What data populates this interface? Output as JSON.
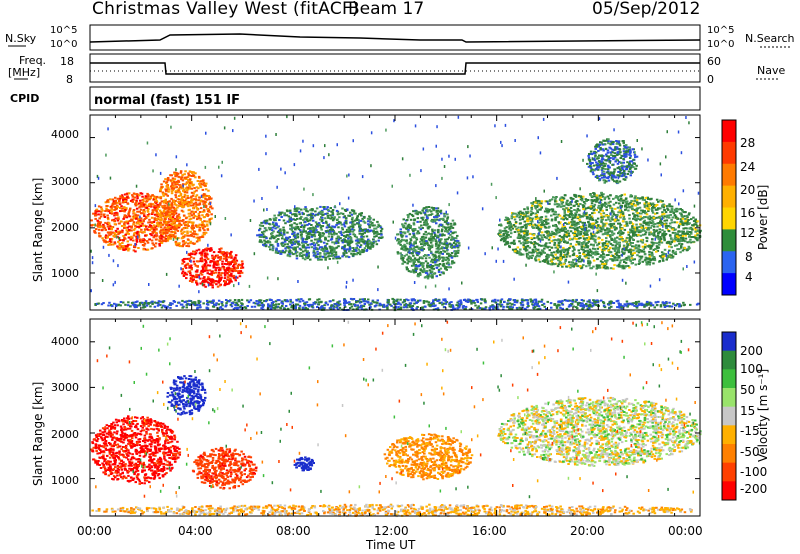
{
  "header": {
    "title": "Christmas Valley West (fitACF)",
    "beam": "Beam 17",
    "date": "05/Sep/2012"
  },
  "summary": {
    "nsky_label": "N.Sky",
    "nsky_ticks": [
      "10^5",
      "10^0"
    ],
    "nsearch_label": "N.Search",
    "nsearch_ticks": [
      "10^5",
      "10^0"
    ],
    "freq_label_1": "Freq.",
    "freq_label_2": "[MHz]",
    "freq_ticks": [
      "18",
      "8"
    ],
    "nave_label": "Nave",
    "nave_ticks": [
      "60",
      "0"
    ],
    "cpid_label": "CPID",
    "cpid_text": "normal (fast) 151 IF"
  },
  "axes": {
    "ylabel": "Slant Range [km]",
    "xlabel": "Time UT",
    "yticks": [
      "4000",
      "3000",
      "2000",
      "1000"
    ],
    "xticks": [
      "00:00",
      "04:00",
      "08:00",
      "12:00",
      "16:00",
      "20:00",
      "00:00"
    ]
  },
  "chart_data": [
    {
      "type": "heatmap",
      "title": "",
      "xlabel": "Time UT",
      "ylabel": "Slant Range [km]",
      "xlim": [
        "00:00",
        "24:00"
      ],
      "ylim": [
        180,
        4500
      ],
      "colorbar": {
        "label": "Power [dB]",
        "ticks": [
          "28",
          "24",
          "20",
          "16",
          "12",
          "8",
          "4"
        ],
        "range": [
          0,
          30
        ],
        "colors": [
          "#0000ff",
          "#2060ff",
          "#338033",
          "#40a040",
          "#ffcc00",
          "#ff8000",
          "#ff0000"
        ]
      },
      "echo_regions": [
        {
          "t": [
            0.0,
            3.5
          ],
          "range": [
            1500,
            2800
          ],
          "value": 24
        },
        {
          "t": [
            2.5,
            4.8
          ],
          "range": [
            1600,
            3300
          ],
          "value": 22
        },
        {
          "t": [
            3.5,
            6.0
          ],
          "range": [
            700,
            1600
          ],
          "value": 27
        },
        {
          "t": [
            6.5,
            11.5
          ],
          "range": [
            1300,
            2500
          ],
          "value": 10
        },
        {
          "t": [
            12.0,
            14.5
          ],
          "range": [
            900,
            2500
          ],
          "value": 11
        },
        {
          "t": [
            16.0,
            24.0
          ],
          "range": [
            1100,
            2800
          ],
          "value": 12
        },
        {
          "t": [
            19.5,
            21.5
          ],
          "range": [
            3000,
            4000
          ],
          "value": 9
        },
        {
          "t": [
            0.0,
            24.0
          ],
          "range": [
            200,
            450
          ],
          "value": 8
        }
      ]
    },
    {
      "type": "heatmap",
      "title": "",
      "xlabel": "Time UT",
      "ylabel": "Slant Range [km]",
      "xlim": [
        "00:00",
        "24:00"
      ],
      "ylim": [
        180,
        4500
      ],
      "colorbar": {
        "label": "Velocity [m s^-1]",
        "ticks": [
          "200",
          "100",
          "50",
          "15",
          "-15",
          "-50",
          "-100",
          "-200"
        ],
        "range": [
          -250,
          250
        ],
        "colors": [
          "#ff0000",
          "#ff8000",
          "#ffaa00",
          "#c8c8c8",
          "#88dd44",
          "#338833",
          "#2040ff",
          "#0000cc"
        ]
      },
      "echo_regions": [
        {
          "t": [
            0.0,
            3.5
          ],
          "range": [
            900,
            2400
          ],
          "value": -200
        },
        {
          "t": [
            3.0,
            4.5
          ],
          "range": [
            2400,
            3300
          ],
          "value": 200
        },
        {
          "t": [
            4.0,
            6.5
          ],
          "range": [
            800,
            1700
          ],
          "value": -150
        },
        {
          "t": [
            8.0,
            8.8
          ],
          "range": [
            1200,
            1500
          ],
          "value": 220
        },
        {
          "t": [
            11.5,
            15.0
          ],
          "range": [
            1000,
            2000
          ],
          "value": -60
        },
        {
          "t": [
            16.0,
            24.0
          ],
          "range": [
            1300,
            2800
          ],
          "value": 0
        },
        {
          "t": [
            0.0,
            24.0
          ],
          "range": [
            200,
            450
          ],
          "value": -30
        }
      ]
    }
  ],
  "colorbar1": {
    "label": "Power [dB]",
    "ticks": [
      "28",
      "24",
      "20",
      "16",
      "12",
      "8",
      "4"
    ],
    "colors": [
      "#0000ff",
      "#2b64f0",
      "#2f8d3a",
      "#4fa56b",
      "#ffc400",
      "#ff8800",
      "#ff3a00",
      "#ff0000"
    ]
  },
  "colorbar2": {
    "label": "Velocity [m s⁻¹]",
    "ticks": [
      "200",
      "100",
      "50",
      "15",
      "-15",
      "-50",
      "-100",
      "-200"
    ],
    "colors": [
      "#1a2dcc",
      "#2e8b3c",
      "#3dbf3d",
      "#99e36b",
      "#c7c7c7",
      "#ffb000",
      "#ff8000",
      "#ff4000",
      "#ff0000"
    ]
  }
}
